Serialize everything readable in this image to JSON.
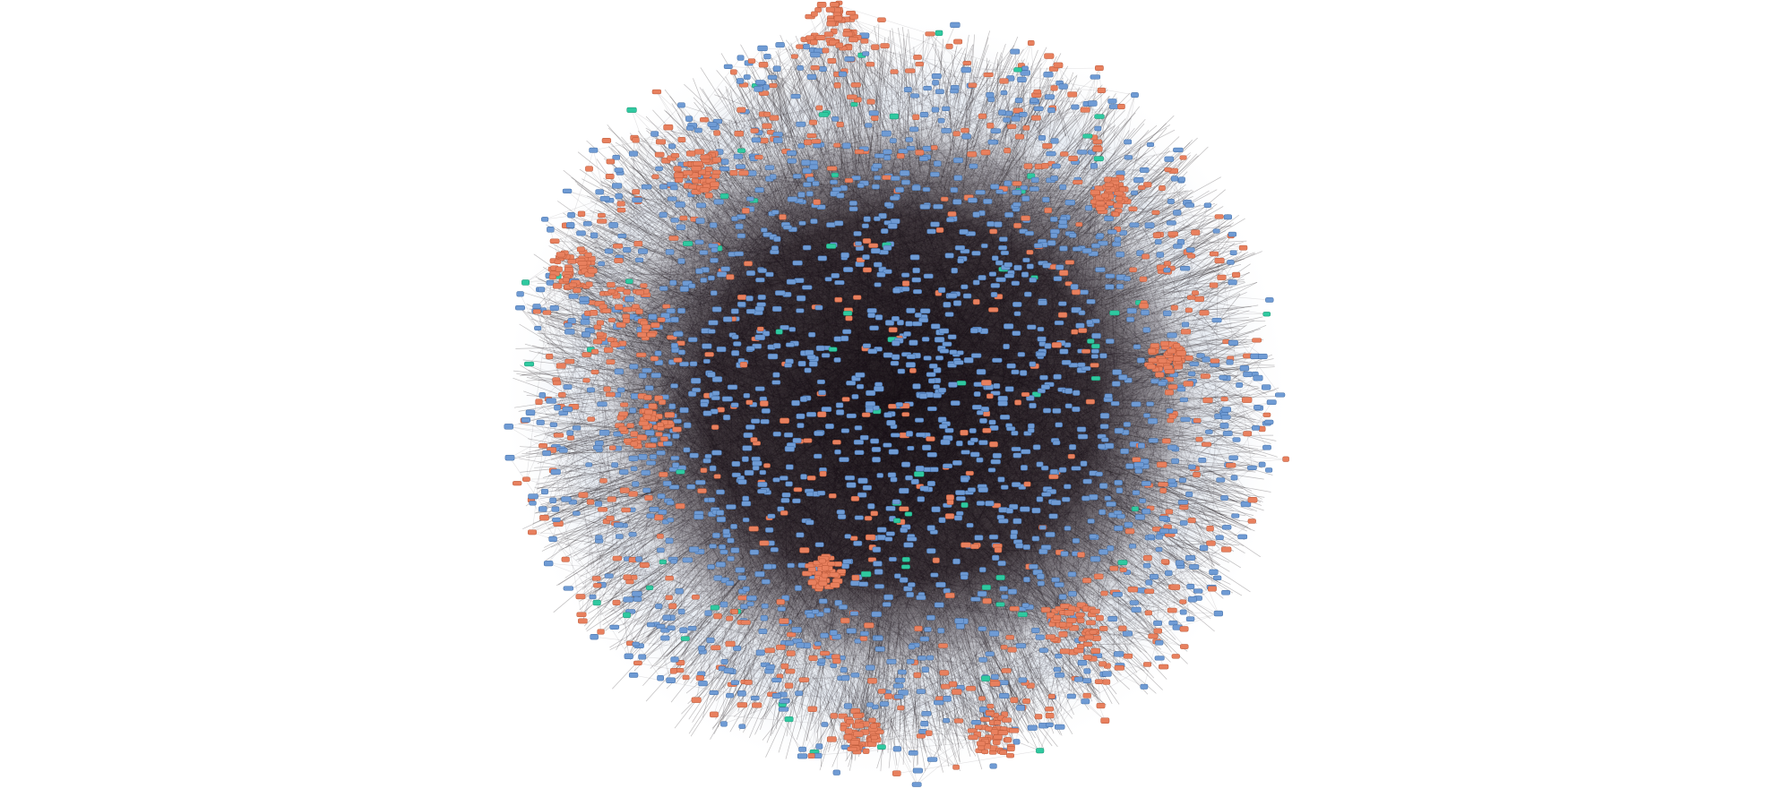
{
  "figure": {
    "kind": "network-graph",
    "background": "#ffffff",
    "layout_style": "dense circular force-directed hairball"
  },
  "node_types": [
    {
      "name": "blue-nodes",
      "color": "#6f9bd4",
      "stroke": "#3f6aa3",
      "share": 0.7
    },
    {
      "name": "orange-nodes",
      "color": "#e8805e",
      "stroke": "#b85738",
      "share": 0.27
    },
    {
      "name": "green-nodes",
      "color": "#2fc9a0",
      "stroke": "#19906f",
      "share": 0.03
    }
  ],
  "edges": {
    "color": "#1b1418",
    "opacity_core": 0.55,
    "opacity_periphery": 0.35
  }
}
